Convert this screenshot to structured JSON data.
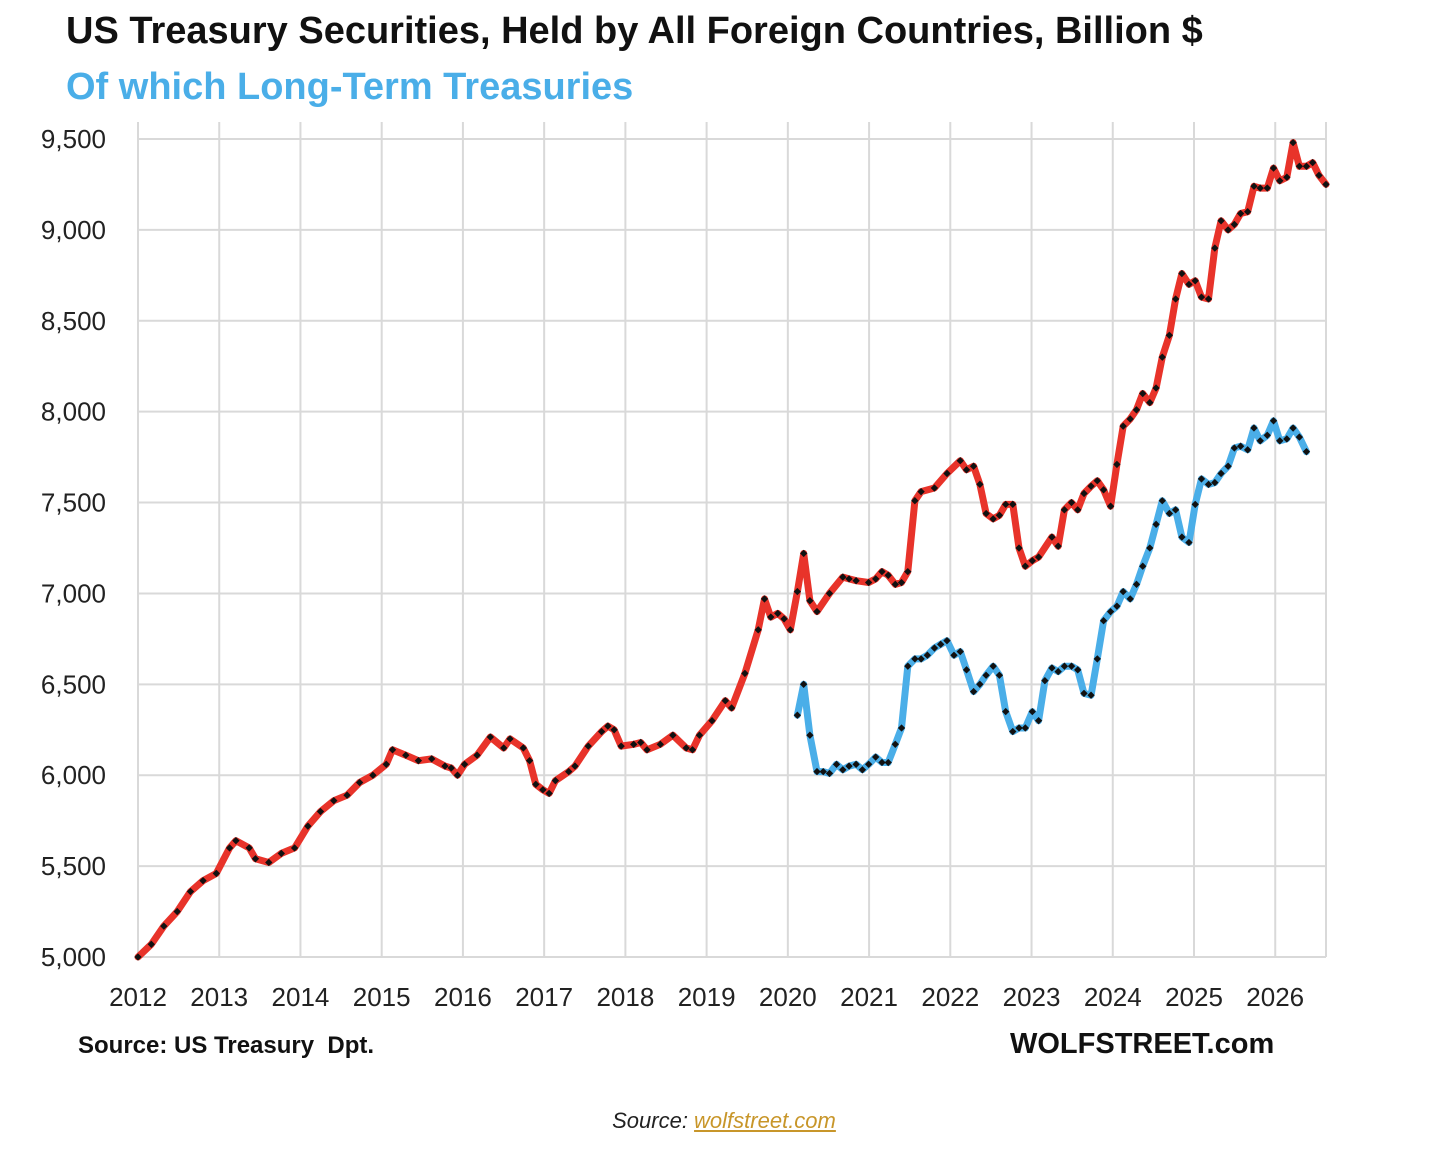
{
  "title": "US Treasury Securities, Held by All Foreign Countries, Billion $",
  "subtitle": "Of which Long-Term Treasuries",
  "source_note": "Source: US Treasury  Dpt.",
  "brand": "WOLFSTREET.com",
  "caption": {
    "prefix": "Source: ",
    "link_text": "wolfstreet.com"
  },
  "colors": {
    "total": "#e8332a",
    "long_term": "#4aaee8",
    "markers": "#111111",
    "grid": "#d9d9d9"
  },
  "chart_data": {
    "type": "line",
    "title": "US Treasury Securities, Held by All Foreign Countries, Billion $",
    "subtitle": "Of which Long-Term Treasuries",
    "xlabel": "",
    "ylabel": "",
    "xlim": [
      2012,
      2026.6
    ],
    "ylim": [
      5000,
      9500
    ],
    "x_ticks": [
      2012,
      2013,
      2014,
      2015,
      2016,
      2017,
      2018,
      2019,
      2020,
      2021,
      2022,
      2023,
      2024,
      2025,
      2026
    ],
    "y_ticks": [
      5000,
      5500,
      6000,
      6500,
      7000,
      7500,
      8000,
      8500,
      9000,
      9500
    ],
    "grid": true,
    "legend": "none",
    "series": [
      {
        "color": "#e8332a",
        "points": [
          [
            2012.0,
            5000
          ],
          [
            2012.17,
            5070
          ],
          [
            2012.33,
            5170
          ],
          [
            2012.5,
            5250
          ],
          [
            2012.67,
            5360
          ],
          [
            2012.83,
            5420
          ],
          [
            2013.0,
            5460
          ],
          [
            2013.17,
            5600
          ],
          [
            2013.25,
            5640
          ],
          [
            2013.42,
            5600
          ],
          [
            2013.5,
            5540
          ],
          [
            2013.67,
            5520
          ],
          [
            2013.83,
            5570
          ],
          [
            2014.0,
            5600
          ],
          [
            2014.17,
            5720
          ],
          [
            2014.33,
            5800
          ],
          [
            2014.5,
            5860
          ],
          [
            2014.67,
            5890
          ],
          [
            2014.83,
            5960
          ],
          [
            2015.0,
            6000
          ],
          [
            2015.17,
            6060
          ],
          [
            2015.25,
            6140
          ],
          [
            2015.42,
            6110
          ],
          [
            2015.58,
            6080
          ],
          [
            2015.75,
            6090
          ],
          [
            2015.92,
            6050
          ],
          [
            2016.0,
            6040
          ],
          [
            2016.08,
            6000
          ],
          [
            2016.17,
            6060
          ],
          [
            2016.33,
            6110
          ],
          [
            2016.5,
            6210
          ],
          [
            2016.67,
            6150
          ],
          [
            2016.75,
            6200
          ],
          [
            2016.92,
            6150
          ],
          [
            2017.0,
            6080
          ],
          [
            2017.08,
            5950
          ],
          [
            2017.17,
            5920
          ],
          [
            2017.25,
            5900
          ],
          [
            2017.33,
            5970
          ],
          [
            2017.5,
            6020
          ],
          [
            2017.58,
            6050
          ],
          [
            2017.75,
            6160
          ],
          [
            2017.92,
            6240
          ],
          [
            2018.0,
            6270
          ],
          [
            2018.08,
            6250
          ],
          [
            2018.17,
            6160
          ],
          [
            2018.33,
            6170
          ],
          [
            2018.42,
            6180
          ],
          [
            2018.5,
            6140
          ],
          [
            2018.67,
            6170
          ],
          [
            2018.83,
            6220
          ],
          [
            2019.0,
            6150
          ],
          [
            2019.08,
            6140
          ],
          [
            2019.17,
            6220
          ],
          [
            2019.33,
            6300
          ],
          [
            2019.5,
            6410
          ],
          [
            2019.58,
            6370
          ],
          [
            2019.75,
            6560
          ],
          [
            2019.92,
            6800
          ],
          [
            2020.0,
            6970
          ],
          [
            2020.08,
            6870
          ],
          [
            2020.17,
            6890
          ],
          [
            2020.25,
            6860
          ],
          [
            2020.33,
            6800
          ],
          [
            2020.42,
            7010
          ],
          [
            2020.5,
            7220
          ],
          [
            2020.58,
            6960
          ],
          [
            2020.67,
            6900
          ],
          [
            2020.83,
            7000
          ],
          [
            2021.0,
            7090
          ],
          [
            2021.08,
            7080
          ],
          [
            2021.17,
            7070
          ],
          [
            2021.33,
            7060
          ],
          [
            2021.42,
            7080
          ],
          [
            2021.5,
            7120
          ],
          [
            2021.58,
            7100
          ],
          [
            2021.67,
            7050
          ],
          [
            2021.75,
            7060
          ],
          [
            2021.83,
            7120
          ],
          [
            2021.92,
            7510
          ],
          [
            2022.0,
            7560
          ],
          [
            2022.17,
            7580
          ],
          [
            2022.33,
            7660
          ],
          [
            2022.5,
            7730
          ],
          [
            2022.58,
            7680
          ],
          [
            2022.67,
            7700
          ],
          [
            2022.75,
            7600
          ],
          [
            2022.83,
            7440
          ],
          [
            2022.92,
            7410
          ],
          [
            2023.0,
            7430
          ],
          [
            2023.08,
            7490
          ],
          [
            2023.17,
            7490
          ],
          [
            2023.25,
            7250
          ],
          [
            2023.33,
            7150
          ],
          [
            2023.42,
            7180
          ],
          [
            2023.5,
            7200
          ],
          [
            2023.67,
            7310
          ],
          [
            2023.75,
            7260
          ],
          [
            2023.83,
            7460
          ],
          [
            2023.92,
            7500
          ],
          [
            2024.0,
            7460
          ],
          [
            2024.08,
            7550
          ],
          [
            2024.17,
            7590
          ],
          [
            2024.25,
            7620
          ],
          [
            2024.33,
            7570
          ],
          [
            2024.42,
            7480
          ],
          [
            2024.5,
            7710
          ],
          [
            2024.58,
            7920
          ],
          [
            2024.67,
            7960
          ],
          [
            2024.75,
            8010
          ],
          [
            2024.83,
            8100
          ],
          [
            2024.92,
            8050
          ],
          [
            2025.0,
            8130
          ],
          [
            2025.08,
            8300
          ],
          [
            2025.17,
            8420
          ],
          [
            2025.25,
            8620
          ],
          [
            2025.33,
            8760
          ],
          [
            2025.42,
            8700
          ],
          [
            2025.5,
            8720
          ],
          [
            2025.58,
            8630
          ],
          [
            2025.67,
            8620
          ],
          [
            2025.75,
            8900
          ],
          [
            2025.83,
            9050
          ],
          [
            2025.92,
            9000
          ],
          [
            2026.0,
            9030
          ],
          [
            2026.08,
            9090
          ],
          [
            2026.17,
            9100
          ],
          [
            2026.25,
            9240
          ],
          [
            2026.33,
            9230
          ],
          [
            2026.42,
            9230
          ],
          [
            2026.5,
            9340
          ],
          [
            2026.58,
            9270
          ],
          [
            2026.67,
            9290
          ],
          [
            2026.75,
            9480
          ],
          [
            2026.83,
            9350
          ],
          [
            2026.92,
            9350
          ],
          [
            2027.0,
            9370
          ],
          [
            2027.08,
            9300
          ],
          [
            2027.17,
            9250
          ]
        ]
      },
      {
        "color": "#4aaee8",
        "points": [
          [
            2020.42,
            6330
          ],
          [
            2020.5,
            6500
          ],
          [
            2020.58,
            6220
          ],
          [
            2020.67,
            6020
          ],
          [
            2020.75,
            6020
          ],
          [
            2020.83,
            6010
          ],
          [
            2020.92,
            6060
          ],
          [
            2021.0,
            6030
          ],
          [
            2021.08,
            6050
          ],
          [
            2021.17,
            6060
          ],
          [
            2021.25,
            6030
          ],
          [
            2021.33,
            6060
          ],
          [
            2021.42,
            6100
          ],
          [
            2021.5,
            6070
          ],
          [
            2021.58,
            6070
          ],
          [
            2021.67,
            6170
          ],
          [
            2021.75,
            6260
          ],
          [
            2021.83,
            6600
          ],
          [
            2021.92,
            6640
          ],
          [
            2022.0,
            6640
          ],
          [
            2022.08,
            6660
          ],
          [
            2022.17,
            6700
          ],
          [
            2022.25,
            6720
          ],
          [
            2022.33,
            6740
          ],
          [
            2022.42,
            6660
          ],
          [
            2022.5,
            6680
          ],
          [
            2022.58,
            6580
          ],
          [
            2022.67,
            6460
          ],
          [
            2022.75,
            6500
          ],
          [
            2022.83,
            6550
          ],
          [
            2022.92,
            6600
          ],
          [
            2023.0,
            6550
          ],
          [
            2023.08,
            6350
          ],
          [
            2023.17,
            6240
          ],
          [
            2023.25,
            6260
          ],
          [
            2023.33,
            6260
          ],
          [
            2023.42,
            6350
          ],
          [
            2023.5,
            6300
          ],
          [
            2023.58,
            6520
          ],
          [
            2023.67,
            6590
          ],
          [
            2023.75,
            6570
          ],
          [
            2023.83,
            6600
          ],
          [
            2023.92,
            6600
          ],
          [
            2024.0,
            6580
          ],
          [
            2024.08,
            6450
          ],
          [
            2024.17,
            6440
          ],
          [
            2024.25,
            6640
          ],
          [
            2024.33,
            6850
          ],
          [
            2024.42,
            6900
          ],
          [
            2024.5,
            6930
          ],
          [
            2024.58,
            7010
          ],
          [
            2024.67,
            6970
          ],
          [
            2024.75,
            7050
          ],
          [
            2024.83,
            7150
          ],
          [
            2024.92,
            7250
          ],
          [
            2025.0,
            7380
          ],
          [
            2025.08,
            7510
          ],
          [
            2025.17,
            7440
          ],
          [
            2025.25,
            7460
          ],
          [
            2025.33,
            7310
          ],
          [
            2025.42,
            7280
          ],
          [
            2025.5,
            7490
          ],
          [
            2025.58,
            7630
          ],
          [
            2025.67,
            7600
          ],
          [
            2025.75,
            7610
          ],
          [
            2025.83,
            7660
          ],
          [
            2025.92,
            7700
          ],
          [
            2026.0,
            7800
          ],
          [
            2026.08,
            7810
          ],
          [
            2026.17,
            7790
          ],
          [
            2026.25,
            7910
          ],
          [
            2026.33,
            7840
          ],
          [
            2026.42,
            7870
          ],
          [
            2026.5,
            7950
          ],
          [
            2026.58,
            7840
          ],
          [
            2026.67,
            7850
          ],
          [
            2026.75,
            7910
          ],
          [
            2026.83,
            7860
          ],
          [
            2026.92,
            7780
          ]
        ]
      }
    ]
  }
}
